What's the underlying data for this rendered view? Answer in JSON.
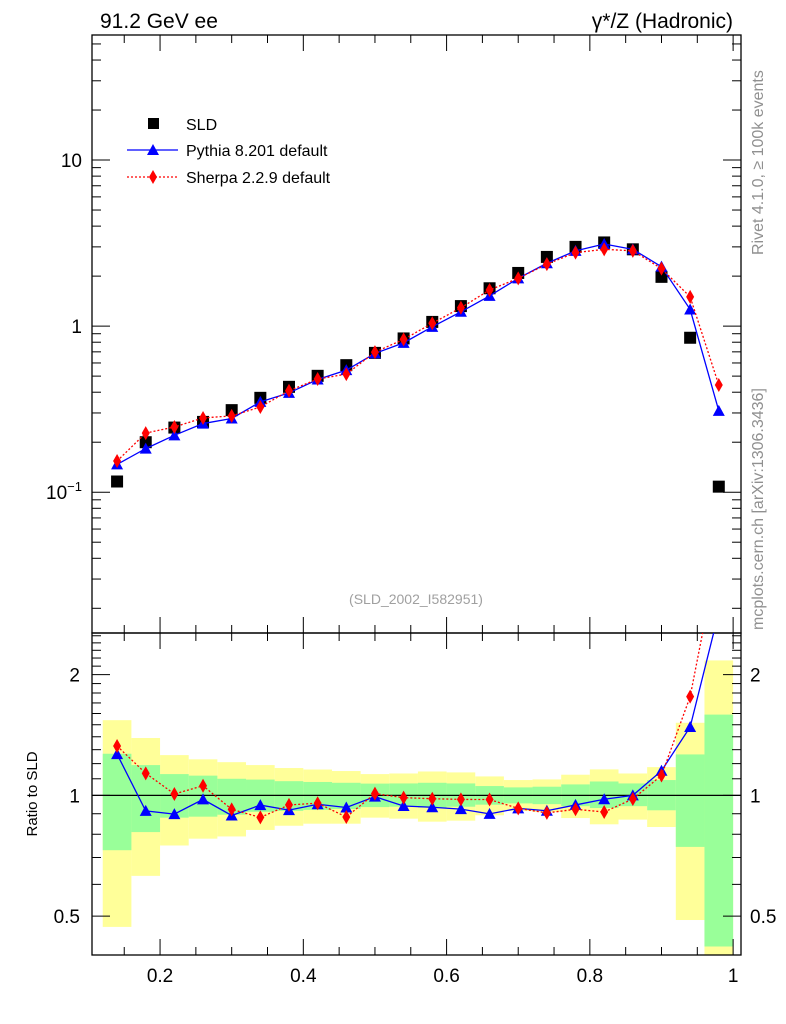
{
  "header": {
    "left": "91.2 GeV ee",
    "right": "γ*/Z (Hadronic)",
    "side_top": "Rivet 4.1.0, ≥ 100k events",
    "side_bottom": "mcplots.cern.ch [arXiv:1306.3436]",
    "watermark": "(SLD_2002_I582951)"
  },
  "chart_data": [
    {
      "type": "scatter",
      "title": "91.2 GeV ee — γ*/Z (Hadronic)",
      "xlabel": "",
      "ylabel": "",
      "xlim": [
        0.105,
        1.011
      ],
      "ylim": [
        0.0142,
        56.6
      ],
      "yscale": "log",
      "ytick_labels": [
        "10",
        "1",
        "10⁻¹"
      ],
      "ytick_values": [
        10,
        1,
        0.1
      ],
      "legend_position": "top-left",
      "x": [
        0.14,
        0.18,
        0.22,
        0.26,
        0.3,
        0.34,
        0.38,
        0.42,
        0.46,
        0.5,
        0.54,
        0.58,
        0.62,
        0.66,
        0.7,
        0.74,
        0.78,
        0.82,
        0.86,
        0.9,
        0.94,
        0.98
      ],
      "series": [
        {
          "name": "SLD",
          "marker": "square",
          "color": "#000000",
          "values": [
            0.116,
            0.2,
            0.245,
            0.265,
            0.312,
            0.37,
            0.431,
            0.502,
            0.582,
            0.69,
            0.843,
            1.06,
            1.32,
            1.69,
            2.09,
            2.61,
            3.0,
            3.19,
            2.9,
            1.98,
            0.851,
            0.108
          ]
        },
        {
          "name": "Pythia 8.201 default",
          "marker": "triangle",
          "line": "solid",
          "color": "#0000ff",
          "values": [
            0.147,
            0.183,
            0.22,
            0.259,
            0.278,
            0.35,
            0.396,
            0.477,
            0.543,
            0.685,
            0.793,
            0.99,
            1.22,
            1.52,
            1.94,
            2.39,
            2.84,
            3.12,
            2.9,
            2.28,
            1.26,
            0.309
          ]
        },
        {
          "name": "Sherpa 2.2.9 default",
          "marker": "diamond",
          "line": "dotted",
          "color": "#ff0000",
          "values": [
            0.154,
            0.227,
            0.247,
            0.28,
            0.288,
            0.326,
            0.408,
            0.48,
            0.514,
            0.697,
            0.832,
            1.04,
            1.29,
            1.65,
            1.94,
            2.36,
            2.77,
            2.9,
            2.84,
            2.22,
            1.5,
            0.442
          ]
        }
      ]
    },
    {
      "type": "line",
      "ylabel": "Ratio to SLD",
      "xlim": [
        0.105,
        1.011
      ],
      "ylim": [
        0.4,
        2.54
      ],
      "yscale": "log",
      "ytick_labels": [
        "2",
        "1",
        "0.5"
      ],
      "ytick_values": [
        2,
        1,
        0.5
      ],
      "xtick_labels": [
        "0.2",
        "0.4",
        "0.6",
        "0.8",
        "1"
      ],
      "xtick_values": [
        0.2,
        0.4,
        0.6,
        0.8,
        1.0
      ],
      "band_edges": [
        0.12,
        0.16,
        0.2,
        0.24,
        0.28,
        0.32,
        0.36,
        0.4,
        0.44,
        0.48,
        0.52,
        0.56,
        0.6,
        0.64,
        0.68,
        0.72,
        0.76,
        0.8,
        0.84,
        0.88,
        0.92,
        0.96,
        1.0
      ],
      "band_total": {
        "name": "total uncertainty",
        "color": "#ffff99",
        "upper": [
          1.54,
          1.39,
          1.26,
          1.23,
          1.21,
          1.19,
          1.17,
          1.16,
          1.15,
          1.13,
          1.134,
          1.147,
          1.141,
          1.115,
          1.092,
          1.096,
          1.126,
          1.161,
          1.134,
          1.176,
          1.517,
          2.17
        ],
        "lower": [
          0.47,
          0.63,
          0.75,
          0.78,
          0.79,
          0.82,
          0.84,
          0.85,
          0.85,
          0.88,
          0.875,
          0.86,
          0.865,
          0.892,
          0.914,
          0.909,
          0.878,
          0.847,
          0.87,
          0.834,
          0.489,
          0.38
        ]
      },
      "band_stat": {
        "name": "statistical uncertainty",
        "color": "#99ff99",
        "upper": [
          1.27,
          1.19,
          1.13,
          1.12,
          1.1,
          1.095,
          1.085,
          1.08,
          1.075,
          1.07,
          1.071,
          1.075,
          1.071,
          1.055,
          1.047,
          1.051,
          1.065,
          1.083,
          1.071,
          1.092,
          1.265,
          1.59
        ],
        "lower": [
          0.73,
          0.81,
          0.88,
          0.885,
          0.895,
          0.91,
          0.915,
          0.92,
          0.925,
          0.935,
          0.937,
          0.932,
          0.937,
          0.948,
          0.955,
          0.951,
          0.94,
          0.93,
          0.94,
          0.918,
          0.744,
          0.42
        ]
      }
    }
  ]
}
